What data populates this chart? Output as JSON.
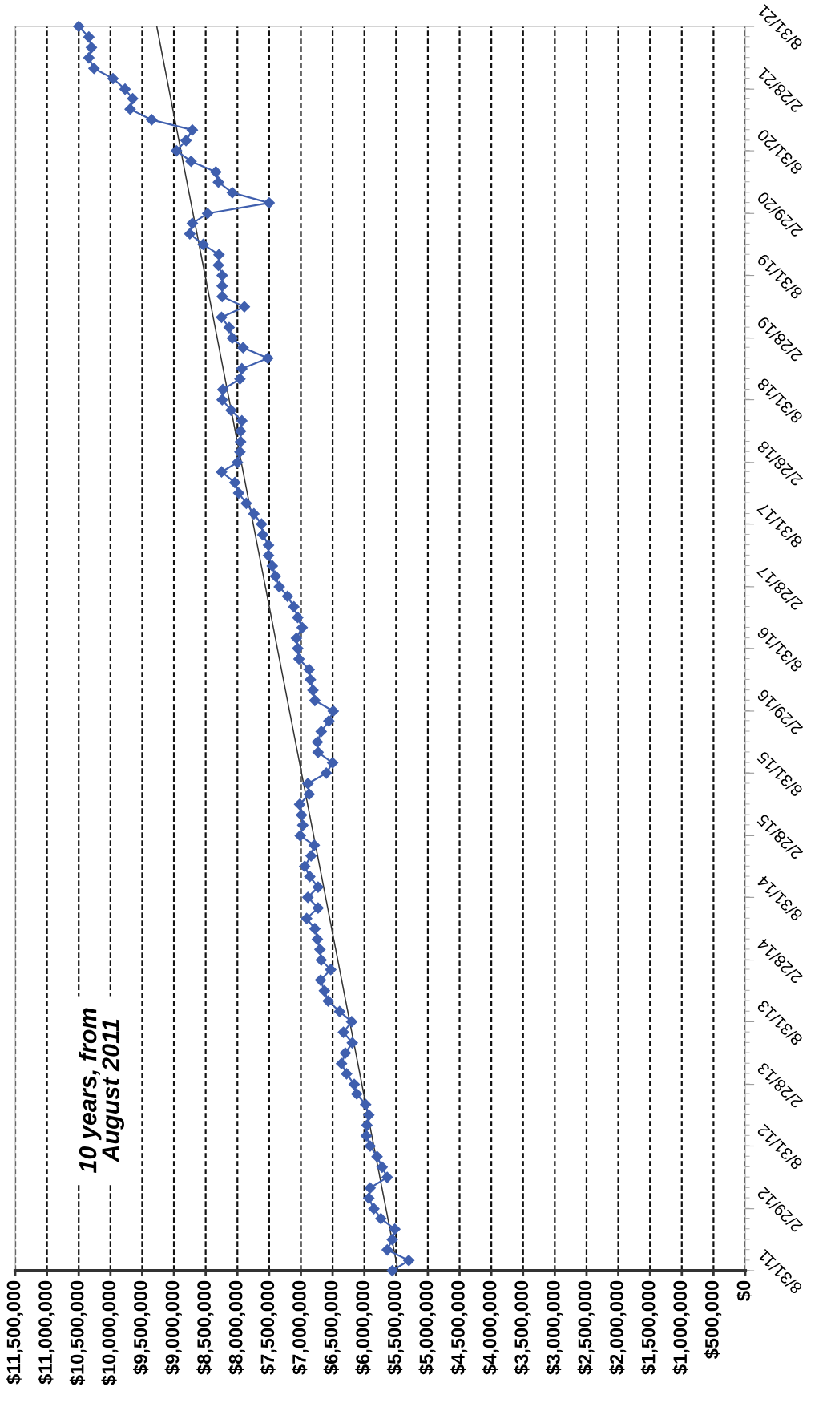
{
  "chart_data": {
    "type": "line",
    "orientation": "horizontal",
    "grid": "x",
    "x": [
      "2011-08-31",
      "2011-09-30",
      "2011-10-31",
      "2011-11-30",
      "2011-12-31",
      "2012-01-31",
      "2012-02-29",
      "2012-03-31",
      "2012-04-30",
      "2012-05-31",
      "2012-06-30",
      "2012-07-31",
      "2012-08-31",
      "2012-09-30",
      "2012-10-31",
      "2012-11-30",
      "2012-12-31",
      "2013-01-31",
      "2013-02-28",
      "2013-03-31",
      "2013-04-30",
      "2013-05-31",
      "2013-06-30",
      "2013-07-31",
      "2013-08-31",
      "2013-09-30",
      "2013-10-31",
      "2013-11-30",
      "2013-12-31",
      "2014-01-31",
      "2014-02-28",
      "2014-03-31",
      "2014-04-30",
      "2014-05-31",
      "2014-06-30",
      "2014-07-31",
      "2014-08-31",
      "2014-09-30",
      "2014-10-31",
      "2014-11-30",
      "2014-12-31",
      "2015-01-31",
      "2015-02-28",
      "2015-03-31",
      "2015-04-30",
      "2015-05-31",
      "2015-06-30",
      "2015-07-31",
      "2015-08-31",
      "2015-09-30",
      "2015-10-31",
      "2015-11-30",
      "2015-12-31",
      "2016-01-31",
      "2016-02-29",
      "2016-03-31",
      "2016-04-30",
      "2016-05-31",
      "2016-06-30",
      "2016-07-31",
      "2016-08-31",
      "2016-09-30",
      "2016-10-31",
      "2016-11-30",
      "2016-12-31",
      "2017-01-31",
      "2017-02-28",
      "2017-03-31",
      "2017-04-30",
      "2017-05-31",
      "2017-06-30",
      "2017-07-31",
      "2017-08-31",
      "2017-09-30",
      "2017-10-31",
      "2017-11-30",
      "2017-12-31",
      "2018-01-31",
      "2018-02-28",
      "2018-03-31",
      "2018-04-30",
      "2018-05-31",
      "2018-06-30",
      "2018-07-31",
      "2018-08-31",
      "2018-09-30",
      "2018-10-31",
      "2018-11-30",
      "2018-12-31",
      "2019-01-31",
      "2019-02-28",
      "2019-03-31",
      "2019-04-30",
      "2019-05-31",
      "2019-06-30",
      "2019-07-31",
      "2019-08-31",
      "2019-09-30",
      "2019-10-31",
      "2019-11-30",
      "2019-12-31",
      "2020-01-31",
      "2020-02-29",
      "2020-03-31",
      "2020-04-30",
      "2020-05-31",
      "2020-06-30",
      "2020-07-31",
      "2020-08-31",
      "2020-09-30",
      "2020-10-31",
      "2020-11-30",
      "2020-12-31",
      "2021-01-31",
      "2021-02-28",
      "2021-03-31",
      "2021-04-30",
      "2021-05-31",
      "2021-06-30",
      "2021-07-31",
      "2021-08-31"
    ],
    "series": [
      {
        "color": "#3f5fae",
        "marker": "diamond",
        "line_style": "solid",
        "values": [
          5560000,
          5300000,
          5640000,
          5560000,
          5520000,
          5740000,
          5850000,
          5930000,
          5910000,
          5640000,
          5720000,
          5800000,
          5910000,
          5970000,
          5960000,
          5930000,
          5980000,
          6120000,
          6160000,
          6280000,
          6360000,
          6300000,
          6190000,
          6330000,
          6200000,
          6390000,
          6570000,
          6630000,
          6690000,
          6530000,
          6680000,
          6700000,
          6740000,
          6780000,
          6910000,
          6730000,
          6890000,
          6730000,
          6860000,
          6940000,
          6840000,
          6790000,
          7010000,
          6970000,
          6990000,
          7020000,
          6870000,
          6890000,
          6600000,
          6500000,
          6730000,
          6740000,
          6680000,
          6560000,
          6490000,
          6780000,
          6810000,
          6850000,
          6870000,
          7030000,
          7050000,
          7070000,
          6980000,
          7050000,
          7110000,
          7210000,
          7340000,
          7400000,
          7450000,
          7510000,
          7510000,
          7600000,
          7620000,
          7740000,
          7860000,
          7980000,
          8040000,
          8250000,
          8000000,
          7960000,
          7950000,
          7950000,
          7930000,
          8100000,
          8240000,
          8230000,
          7960000,
          7930000,
          7520000,
          7910000,
          8080000,
          8130000,
          8250000,
          7890000,
          8240000,
          8240000,
          8240000,
          8300000,
          8290000,
          8540000,
          8750000,
          8710000,
          8470000,
          7500000,
          8080000,
          8300000,
          8340000,
          8730000,
          8960000,
          8810000,
          8710000,
          9350000,
          9690000,
          9650000,
          9770000,
          9960000,
          10260000,
          10340000,
          10300000,
          10340000,
          10500000
        ]
      },
      {
        "color": "#333333",
        "marker": "none",
        "line_style": "solid",
        "x": [
          "2011-08-31",
          "2021-08-31"
        ],
        "values": [
          5470000,
          9270000
        ]
      }
    ],
    "xlim": [
      11500000,
      0
    ],
    "xticks": [
      {
        "value": 0,
        "label": "$0"
      },
      {
        "value": 500000,
        "label": "$500,000"
      },
      {
        "value": 1000000,
        "label": "$1,000,000"
      },
      {
        "value": 1500000,
        "label": "$1,500,000"
      },
      {
        "value": 2000000,
        "label": "$2,000,000"
      },
      {
        "value": 2500000,
        "label": "$2,500,000"
      },
      {
        "value": 3000000,
        "label": "$3,000,000"
      },
      {
        "value": 3500000,
        "label": "$3,500,000"
      },
      {
        "value": 4000000,
        "label": "$4,000,000"
      },
      {
        "value": 4500000,
        "label": "$4,500,000"
      },
      {
        "value": 5000000,
        "label": "$5,000,000"
      },
      {
        "value": 5500000,
        "label": "$5,500,000"
      },
      {
        "value": 6000000,
        "label": "$6,000,000"
      },
      {
        "value": 6500000,
        "label": "$6,500,000"
      },
      {
        "value": 7000000,
        "label": "$7,000,000"
      },
      {
        "value": 7500000,
        "label": "$7,500,000"
      },
      {
        "value": 8000000,
        "label": "$8,000,000"
      },
      {
        "value": 8500000,
        "label": "$8,500,000"
      },
      {
        "value": 9000000,
        "label": "$9,000,000"
      },
      {
        "value": 9500000,
        "label": "$9,500,000"
      },
      {
        "value": 10000000,
        "label": "$10,000,000"
      },
      {
        "value": 10500000,
        "label": "$10,500,000"
      },
      {
        "value": 11000000,
        "label": "$11,000,000"
      },
      {
        "value": 11500000,
        "label": "$11,500,000"
      }
    ],
    "ylim": [
      "2011-08-31",
      "2021-08-31"
    ],
    "yticks": [
      {
        "value": "2011-08-31",
        "label": "8/31/11"
      },
      {
        "value": "2012-02-29",
        "label": "2/29/12"
      },
      {
        "value": "2012-08-31",
        "label": "8/31/12"
      },
      {
        "value": "2013-02-28",
        "label": "2/28/13"
      },
      {
        "value": "2013-08-31",
        "label": "8/31/13"
      },
      {
        "value": "2014-02-28",
        "label": "2/28/14"
      },
      {
        "value": "2014-08-31",
        "label": "8/31/14"
      },
      {
        "value": "2015-02-28",
        "label": "2/28/15"
      },
      {
        "value": "2015-08-31",
        "label": "8/31/15"
      },
      {
        "value": "2016-02-29",
        "label": "2/29/16"
      },
      {
        "value": "2016-08-31",
        "label": "8/31/16"
      },
      {
        "value": "2017-02-28",
        "label": "2/28/17"
      },
      {
        "value": "2017-08-31",
        "label": "8/31/17"
      },
      {
        "value": "2018-02-28",
        "label": "2/28/18"
      },
      {
        "value": "2018-08-31",
        "label": "8/31/18"
      },
      {
        "value": "2019-02-28",
        "label": "2/28/19"
      },
      {
        "value": "2019-08-31",
        "label": "8/31/19"
      },
      {
        "value": "2020-02-29",
        "label": "2/29/20"
      },
      {
        "value": "2020-08-31",
        "label": "8/31/20"
      },
      {
        "value": "2021-02-28",
        "label": "2/28/21"
      },
      {
        "value": "2021-08-31",
        "label": "8/31/21"
      }
    ],
    "annotations": [
      "10 years, from\nAugust 2011"
    ]
  }
}
